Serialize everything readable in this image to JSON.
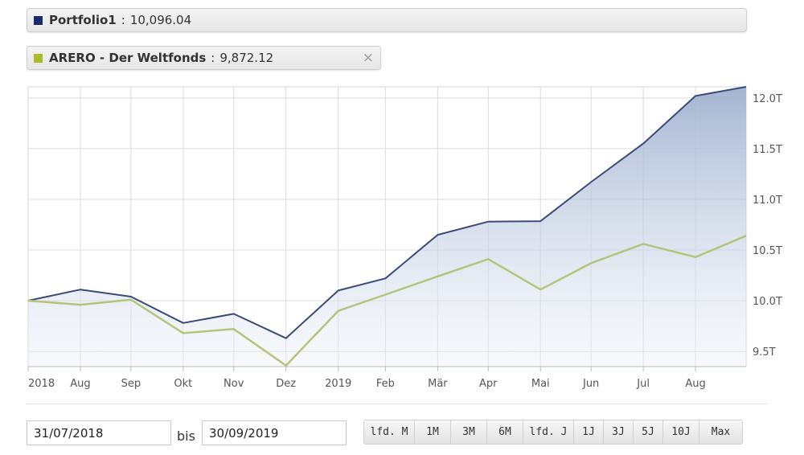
{
  "legend": [
    {
      "name": "Portfolio1",
      "separator": ":",
      "value": "10,096.04",
      "color": "#1a2a6c",
      "closable": false
    },
    {
      "name": "ARERO - Der Weltfonds",
      "separator": ":",
      "value": "9,872.12",
      "color": "#a9bd2a",
      "closable": true,
      "close_glyph": "×"
    }
  ],
  "chart_data": {
    "type": "area",
    "x": [
      "2018-07-31",
      "2018-08-31",
      "2018-09-30",
      "2018-10-31",
      "2018-11-30",
      "2018-12-31",
      "2019-01-31",
      "2019-02-28",
      "2019-03-31",
      "2019-04-30",
      "2019-05-31",
      "2019-06-30",
      "2019-07-31",
      "2019-08-31",
      "2019-09-30"
    ],
    "x_tick_labels": [
      "2018",
      "Aug",
      "Sep",
      "Okt",
      "Nov",
      "Dez",
      "2019",
      "Feb",
      "Mär",
      "Apr",
      "Mai",
      "Jun",
      "Jul",
      "Aug"
    ],
    "y_tick_labels": [
      "12.0T",
      "11.5T",
      "11.0T",
      "10.5T",
      "10.0T",
      "9.5T"
    ],
    "y_ticks": [
      12000,
      11500,
      11000,
      10500,
      10000,
      9500
    ],
    "ylim": [
      9350,
      12110
    ],
    "grid": true,
    "series": [
      {
        "name": "Portfolio1",
        "color": "#3a4a7a",
        "fill": true,
        "values": [
          10000,
          10110,
          10040,
          9780,
          9870,
          9630,
          10100,
          10220,
          10650,
          10780,
          10785,
          11170,
          11550,
          12020,
          12110
        ]
      },
      {
        "name": "ARERO - Der Weltfonds",
        "color": "#b5c47a",
        "fill": false,
        "values": [
          10000,
          9960,
          10010,
          9680,
          9720,
          9360,
          9900,
          10060,
          10240,
          10410,
          10110,
          10370,
          10560,
          10430,
          10640
        ]
      }
    ]
  },
  "controls": {
    "from_date": "31/07/2018",
    "bis_label": "bis",
    "to_date": "30/09/2019",
    "range_buttons": [
      "lfd. M",
      "1M",
      "3M",
      "6M",
      "lfd. J",
      "1J",
      "3J",
      "5J",
      "10J",
      "Max"
    ]
  }
}
